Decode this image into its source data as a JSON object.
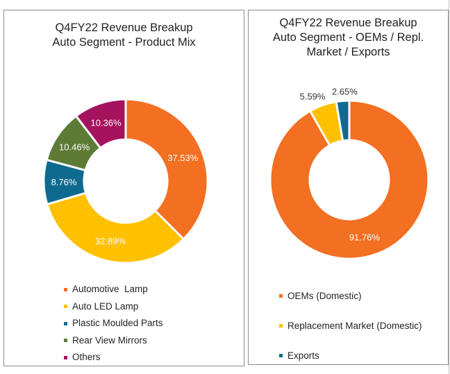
{
  "chart_data": [
    {
      "type": "pie",
      "donut": true,
      "title": [
        "Q4FY22 Revenue Breakup",
        "Auto Segment - Product Mix"
      ],
      "categories": [
        "Automotive  Lamp",
        "Auto LED Lamp",
        "Plastic Moulded Parts",
        "Rear View Mirrors",
        "Others"
      ],
      "values": [
        37.53,
        32.89,
        8.76,
        10.46,
        10.36
      ],
      "labels": [
        "37.53%",
        "32.89%",
        "8.76%",
        "10.46%",
        "10.36%"
      ],
      "colors": [
        "#F36F21",
        "#FFC000",
        "#0F6A8F",
        "#5D7B35",
        "#A5125E"
      ],
      "legend_placement": "bottom"
    },
    {
      "type": "pie",
      "donut": true,
      "title": [
        "Q4FY22 Revenue Breakup",
        "Auto Segment -  OEMs / Repl.",
        "Market / Exports"
      ],
      "categories": [
        "OEMs (Domestic)",
        "Replacement Market (Domestic)",
        "Exports"
      ],
      "values": [
        91.76,
        5.59,
        2.65
      ],
      "labels": [
        "91.76%",
        "5.59%",
        "2.65%"
      ],
      "colors": [
        "#F36F21",
        "#FFC000",
        "#0F6A8F"
      ],
      "legend_placement": "bottom"
    }
  ]
}
